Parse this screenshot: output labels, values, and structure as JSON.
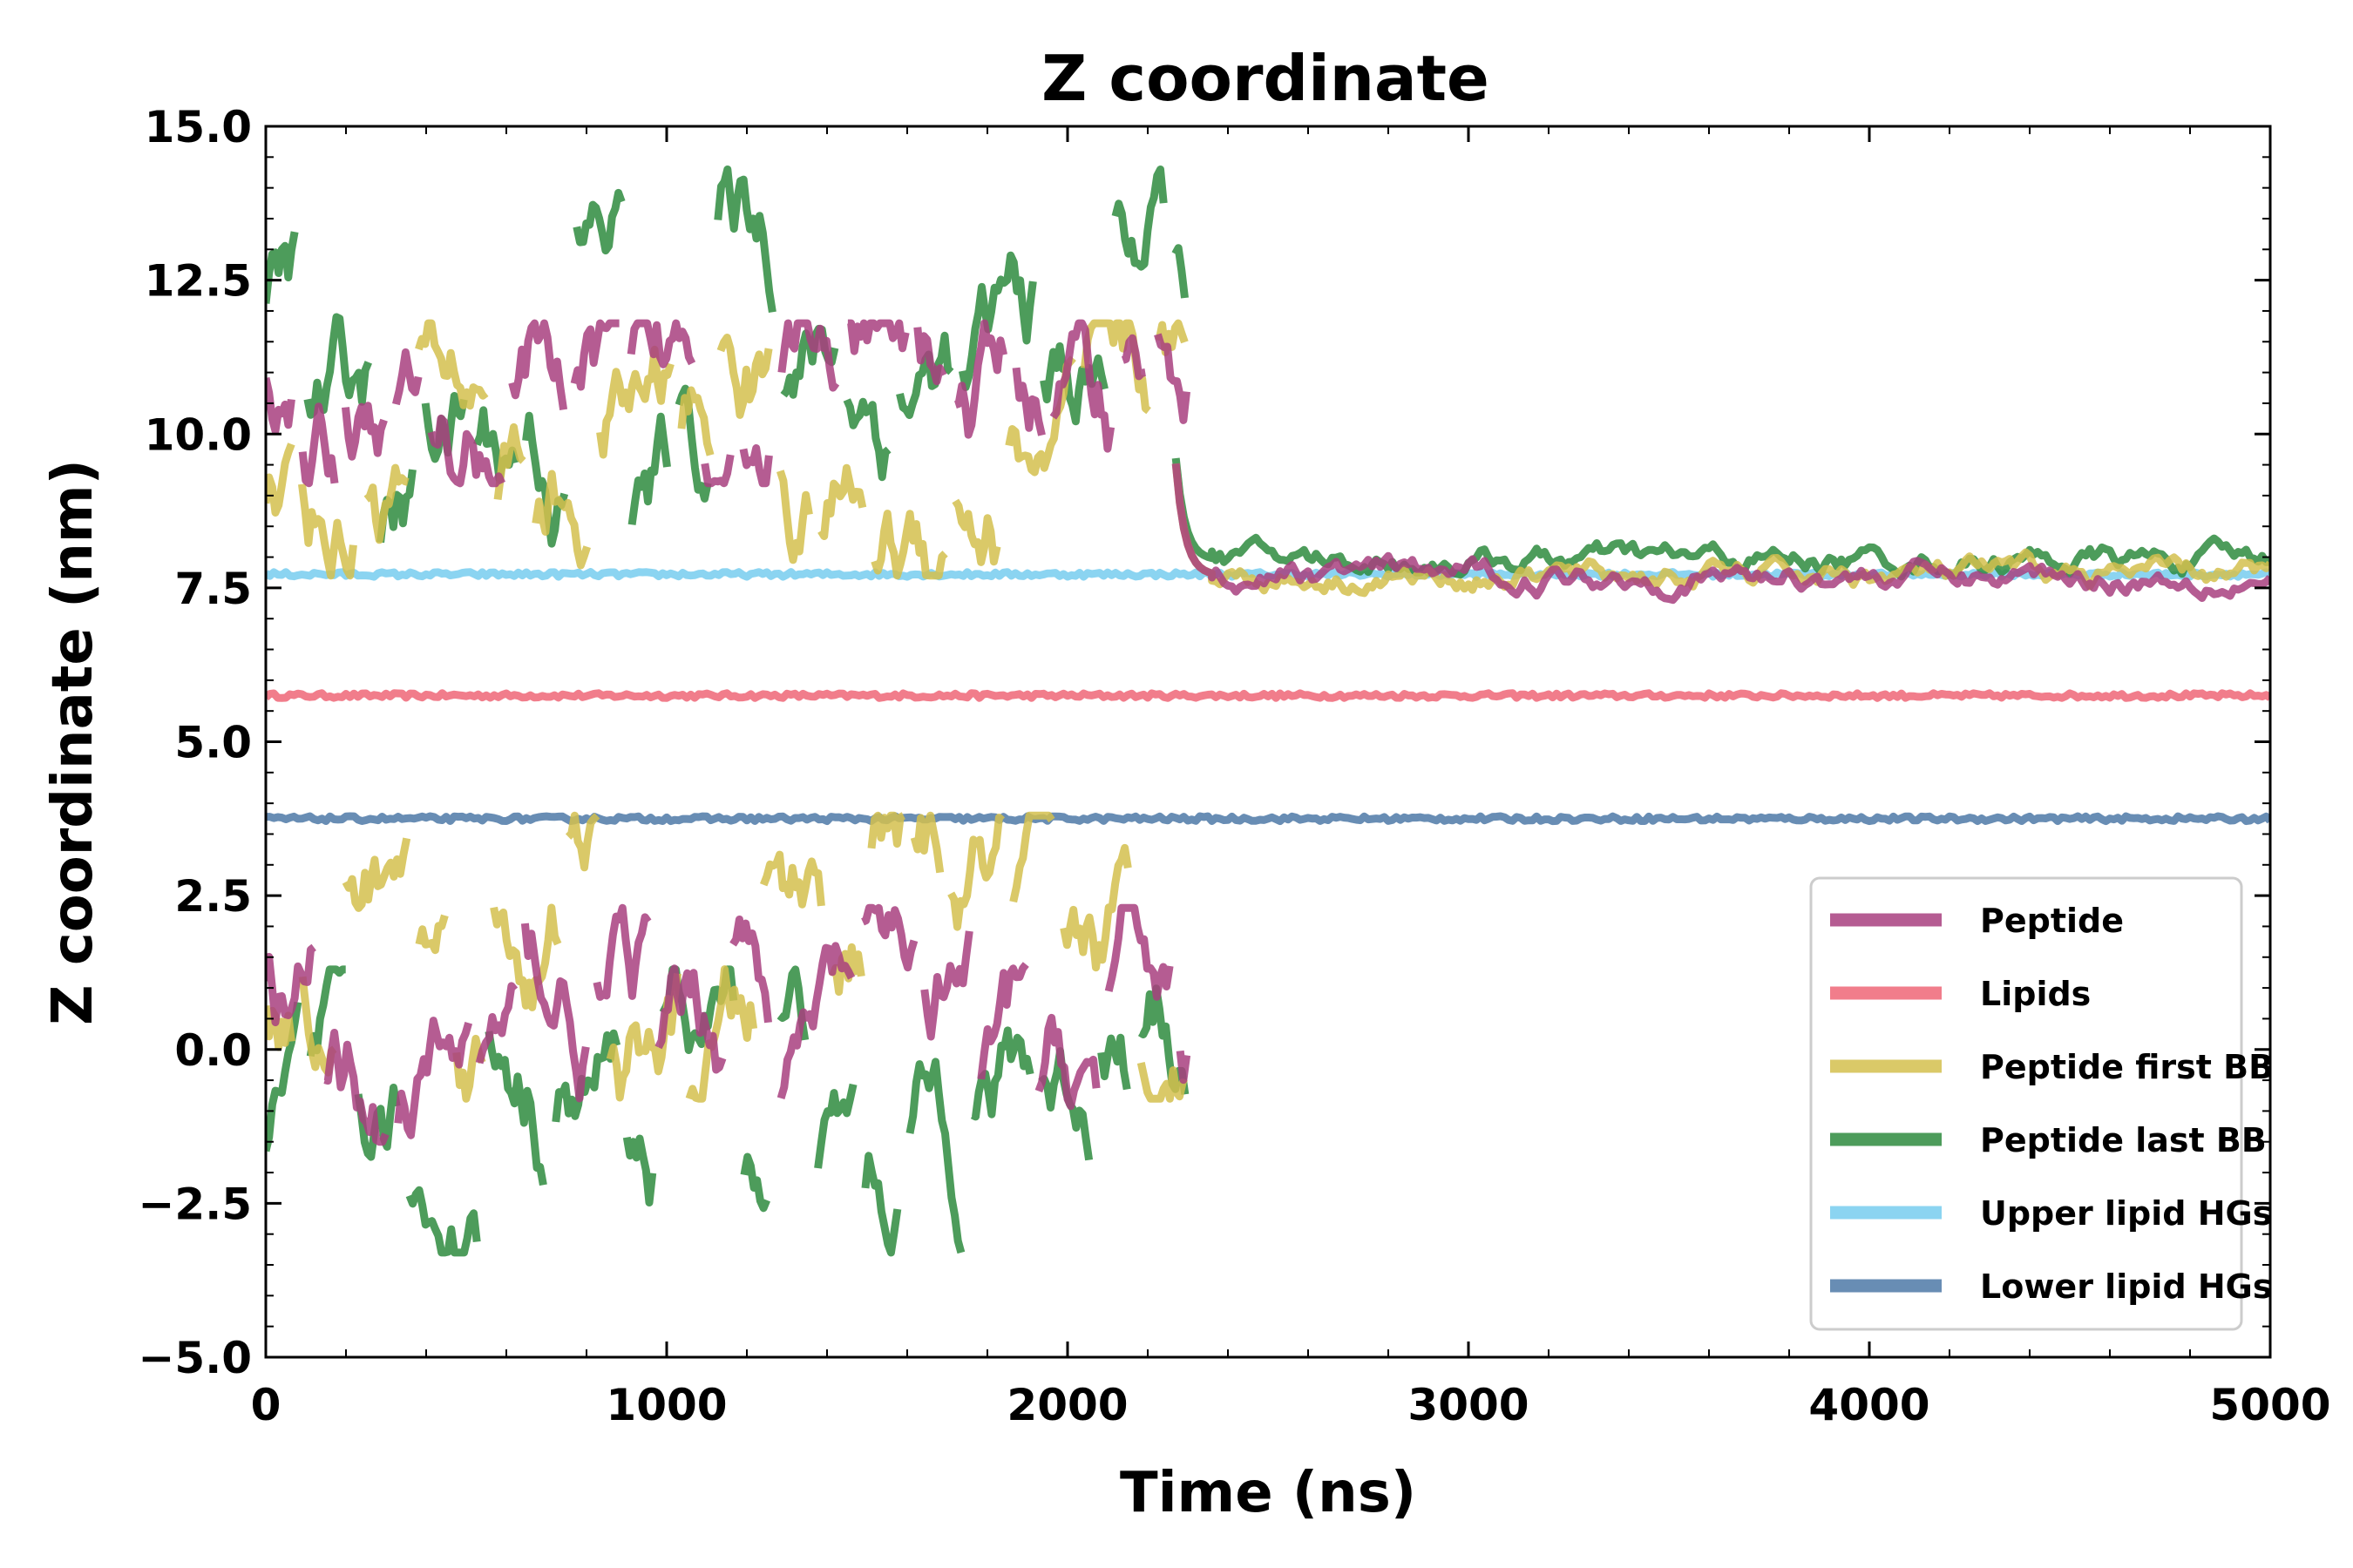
{
  "chart_data": {
    "type": "line",
    "title": "Z coordinate",
    "xlabel": "Time (ns)",
    "ylabel": "Z coordinate (nm)",
    "xlim": [
      0,
      5000
    ],
    "ylim": [
      -5.0,
      15.0
    ],
    "xticks": [
      0,
      1000,
      2000,
      3000,
      4000,
      5000
    ],
    "xtick_labels": [
      "0",
      "1000",
      "2000",
      "3000",
      "4000",
      "5000"
    ],
    "yticks": [
      -5.0,
      -2.5,
      0.0,
      2.5,
      5.0,
      7.5,
      10.0,
      12.5,
      15.0
    ],
    "ytick_labels": [
      "−5.0",
      "−2.5",
      "0.0",
      "2.5",
      "5.0",
      "7.5",
      "10.0",
      "12.5",
      "15.0"
    ],
    "grid": false,
    "legend_position": "bottom-right",
    "series": [
      {
        "name": "Peptide",
        "color": "#a8407f",
        "before_crossing_ns": 2300,
        "upper_band_nm": [
          9.5,
          11.5
        ],
        "lower_band_nm": [
          -1.2,
          2.0
        ],
        "after_crossing_mean_nm": 7.7
      },
      {
        "name": "Lipids",
        "color": "#ee6677",
        "mean_nm": 5.75
      },
      {
        "name": "Peptide first BB",
        "color": "#d4bf4e",
        "before_crossing_ns": 2300,
        "upper_band_nm": [
          8.0,
          11.5
        ],
        "lower_band_nm": [
          -0.5,
          3.5
        ],
        "after_crossing_mean_nm": 7.7
      },
      {
        "name": "Peptide last BB",
        "color": "#2e8b3e",
        "before_crossing_ns": 2300,
        "upper_band_nm": [
          8.0,
          14.0
        ],
        "lower_band_nm": [
          -3.0,
          1.0
        ],
        "after_crossing_mean_nm": 7.95
      },
      {
        "name": "Upper lipid HGs",
        "color": "#77cdee",
        "mean_nm": 7.72
      },
      {
        "name": "Lower lipid HGs",
        "color": "#4e79a7",
        "mean_nm": 3.75
      }
    ]
  }
}
